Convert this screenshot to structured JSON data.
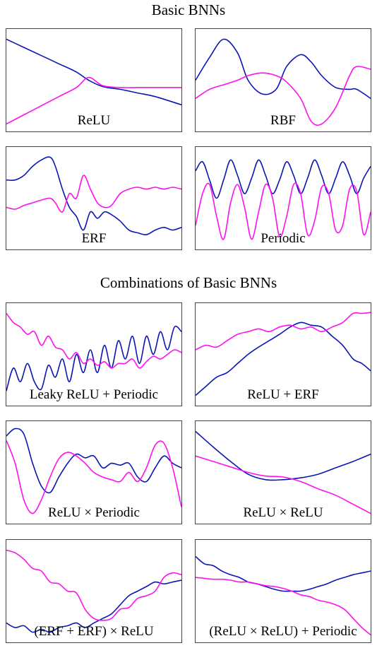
{
  "headings": {
    "basic": "Basic BNNs",
    "combos": "Combinations of Basic BNNs"
  },
  "colors": {
    "blue": "#0a16b4",
    "magenta": "#ff10ee"
  },
  "chart_data": [
    {
      "type": "line",
      "label": "ReLU",
      "grid": false,
      "ylim": [
        0,
        1
      ],
      "x": [
        0,
        0.1,
        0.2,
        0.3,
        0.4,
        0.47,
        0.55,
        0.65,
        0.75,
        0.85,
        1
      ],
      "series": [
        {
          "color": "blue",
          "values": [
            0.95,
            0.86,
            0.77,
            0.68,
            0.59,
            0.5,
            0.43,
            0.4,
            0.36,
            0.32,
            0.23
          ]
        },
        {
          "color": "magenta",
          "values": [
            0.02,
            0.12,
            0.22,
            0.32,
            0.42,
            0.53,
            0.44,
            0.42,
            0.42,
            0.42,
            0.42
          ]
        }
      ]
    },
    {
      "type": "line",
      "label": "RBF",
      "grid": false,
      "ylim": [
        0,
        1
      ],
      "x": [
        0,
        0.08,
        0.16,
        0.24,
        0.3,
        0.38,
        0.46,
        0.52,
        0.6,
        0.66,
        0.72,
        0.8,
        0.88,
        0.92,
        1
      ],
      "series": [
        {
          "color": "blue",
          "values": [
            0.5,
            0.75,
            0.95,
            0.8,
            0.5,
            0.35,
            0.4,
            0.65,
            0.78,
            0.7,
            0.55,
            0.42,
            0.4,
            0.4,
            0.3
          ]
        },
        {
          "color": "magenta",
          "values": [
            0.3,
            0.4,
            0.45,
            0.5,
            0.55,
            0.58,
            0.55,
            0.48,
            0.3,
            0.05,
            0.02,
            0.2,
            0.55,
            0.65,
            0.62
          ]
        }
      ]
    },
    {
      "type": "line",
      "label": "ERF",
      "grid": false,
      "ylim": [
        0,
        1
      ],
      "x": [
        0,
        0.05,
        0.1,
        0.15,
        0.2,
        0.25,
        0.28,
        0.32,
        0.36,
        0.4,
        0.44,
        0.48,
        0.52,
        0.56,
        0.6,
        0.65,
        0.7,
        0.75,
        0.8,
        0.85,
        0.9,
        0.95,
        1
      ],
      "series": [
        {
          "color": "blue",
          "values": [
            0.7,
            0.7,
            0.75,
            0.85,
            0.92,
            0.95,
            0.85,
            0.6,
            0.4,
            0.3,
            0.15,
            0.35,
            0.28,
            0.35,
            0.32,
            0.25,
            0.15,
            0.12,
            0.1,
            0.15,
            0.18,
            0.15,
            0.18
          ]
        },
        {
          "color": "magenta",
          "values": [
            0.4,
            0.38,
            0.42,
            0.45,
            0.48,
            0.5,
            0.45,
            0.35,
            0.55,
            0.5,
            0.75,
            0.6,
            0.45,
            0.4,
            0.42,
            0.55,
            0.6,
            0.62,
            0.6,
            0.62,
            0.6,
            0.62,
            0.6
          ]
        }
      ]
    },
    {
      "type": "line",
      "label": "Periodic",
      "grid": false,
      "ylim": [
        0,
        1
      ],
      "x": [
        0,
        0.04,
        0.08,
        0.12,
        0.16,
        0.2,
        0.24,
        0.28,
        0.32,
        0.36,
        0.4,
        0.44,
        0.48,
        0.52,
        0.56,
        0.6,
        0.64,
        0.68,
        0.72,
        0.76,
        0.8,
        0.84,
        0.88,
        0.92,
        0.96,
        1
      ],
      "series": [
        {
          "color": "blue",
          "values": [
            0.8,
            0.9,
            0.7,
            0.5,
            0.7,
            0.92,
            0.75,
            0.55,
            0.72,
            0.92,
            0.75,
            0.55,
            0.7,
            0.9,
            0.75,
            0.55,
            0.72,
            0.92,
            0.75,
            0.55,
            0.72,
            0.9,
            0.75,
            0.55,
            0.72,
            0.85
          ]
        },
        {
          "color": "magenta",
          "values": [
            0.2,
            0.55,
            0.65,
            0.3,
            0.05,
            0.45,
            0.65,
            0.4,
            0.05,
            0.35,
            0.65,
            0.5,
            0.08,
            0.3,
            0.65,
            0.55,
            0.1,
            0.25,
            0.62,
            0.55,
            0.15,
            0.2,
            0.6,
            0.58,
            0.1,
            0.35
          ]
        }
      ]
    },
    {
      "type": "line",
      "label": "Leaky ReLU + Periodic",
      "grid": false,
      "ylim": [
        0,
        1
      ],
      "x": [
        0,
        0.04,
        0.08,
        0.12,
        0.16,
        0.2,
        0.24,
        0.28,
        0.32,
        0.36,
        0.4,
        0.44,
        0.48,
        0.52,
        0.56,
        0.6,
        0.64,
        0.68,
        0.72,
        0.76,
        0.8,
        0.84,
        0.88,
        0.92,
        0.96,
        1
      ],
      "series": [
        {
          "color": "blue",
          "values": [
            0.1,
            0.35,
            0.2,
            0.4,
            0.2,
            0.12,
            0.38,
            0.25,
            0.45,
            0.2,
            0.5,
            0.3,
            0.55,
            0.3,
            0.6,
            0.35,
            0.65,
            0.45,
            0.7,
            0.4,
            0.7,
            0.5,
            0.75,
            0.55,
            0.8,
            0.75
          ]
        },
        {
          "color": "magenta",
          "values": [
            0.95,
            0.85,
            0.8,
            0.72,
            0.75,
            0.6,
            0.7,
            0.58,
            0.55,
            0.45,
            0.52,
            0.4,
            0.45,
            0.38,
            0.42,
            0.35,
            0.4,
            0.4,
            0.45,
            0.35,
            0.42,
            0.48,
            0.45,
            0.5,
            0.55,
            0.52
          ]
        }
      ]
    },
    {
      "type": "line",
      "label": "ReLU + ERF",
      "grid": false,
      "ylim": [
        0,
        1
      ],
      "x": [
        0,
        0.06,
        0.12,
        0.18,
        0.24,
        0.3,
        0.36,
        0.42,
        0.48,
        0.54,
        0.6,
        0.66,
        0.72,
        0.78,
        0.84,
        0.9,
        0.95,
        1
      ],
      "series": [
        {
          "color": "blue",
          "values": [
            0.05,
            0.15,
            0.25,
            0.3,
            0.4,
            0.5,
            0.58,
            0.65,
            0.72,
            0.8,
            0.85,
            0.82,
            0.8,
            0.7,
            0.6,
            0.45,
            0.4,
            0.32
          ]
        },
        {
          "color": "magenta",
          "values": [
            0.55,
            0.6,
            0.58,
            0.65,
            0.72,
            0.75,
            0.78,
            0.75,
            0.8,
            0.82,
            0.78,
            0.8,
            0.75,
            0.8,
            0.85,
            0.95,
            0.95,
            0.96
          ]
        }
      ]
    },
    {
      "type": "line",
      "label": "ReLU × Periodic",
      "grid": false,
      "ylim": [
        0,
        1
      ],
      "x": [
        0,
        0.05,
        0.1,
        0.15,
        0.2,
        0.25,
        0.3,
        0.35,
        0.4,
        0.45,
        0.5,
        0.55,
        0.6,
        0.65,
        0.7,
        0.75,
        0.8,
        0.85,
        0.9,
        0.95,
        1
      ],
      "series": [
        {
          "color": "blue",
          "values": [
            0.9,
            0.98,
            0.92,
            0.6,
            0.35,
            0.28,
            0.45,
            0.6,
            0.7,
            0.66,
            0.68,
            0.55,
            0.6,
            0.58,
            0.6,
            0.45,
            0.4,
            0.55,
            0.68,
            0.6,
            0.55
          ]
        },
        {
          "color": "magenta",
          "values": [
            0.85,
            0.6,
            0.2,
            0.05,
            0.2,
            0.45,
            0.65,
            0.72,
            0.68,
            0.6,
            0.5,
            0.45,
            0.42,
            0.4,
            0.5,
            0.4,
            0.55,
            0.8,
            0.82,
            0.55,
            0.12
          ]
        }
      ]
    },
    {
      "type": "line",
      "label": "ReLU × ReLU",
      "grid": false,
      "ylim": [
        0,
        1
      ],
      "x": [
        0,
        0.1,
        0.2,
        0.3,
        0.4,
        0.5,
        0.6,
        0.7,
        0.8,
        0.9,
        1
      ],
      "series": [
        {
          "color": "blue",
          "values": [
            0.95,
            0.78,
            0.62,
            0.48,
            0.42,
            0.42,
            0.44,
            0.48,
            0.55,
            0.62,
            0.7
          ]
        },
        {
          "color": "magenta",
          "values": [
            0.68,
            0.62,
            0.56,
            0.5,
            0.46,
            0.45,
            0.4,
            0.32,
            0.25,
            0.15,
            0.05
          ]
        }
      ]
    },
    {
      "type": "line",
      "label": "(ERF + ERF) × ReLU",
      "grid": false,
      "ylim": [
        0,
        1
      ],
      "x": [
        0,
        0.05,
        0.1,
        0.15,
        0.2,
        0.25,
        0.3,
        0.35,
        0.4,
        0.45,
        0.5,
        0.55,
        0.6,
        0.65,
        0.7,
        0.75,
        0.8,
        0.85,
        0.9,
        0.95,
        1
      ],
      "series": [
        {
          "color": "blue",
          "values": [
            0.15,
            0.1,
            0.12,
            0.05,
            0.08,
            0.05,
            0.1,
            0.12,
            0.15,
            0.1,
            0.15,
            0.2,
            0.25,
            0.35,
            0.45,
            0.5,
            0.55,
            0.6,
            0.58,
            0.6,
            0.62
          ]
        },
        {
          "color": "magenta",
          "values": [
            0.95,
            0.92,
            0.85,
            0.75,
            0.72,
            0.6,
            0.58,
            0.5,
            0.48,
            0.3,
            0.2,
            0.18,
            0.2,
            0.3,
            0.32,
            0.42,
            0.45,
            0.5,
            0.65,
            0.7,
            0.68
          ]
        }
      ]
    },
    {
      "type": "line",
      "label": "(ReLU × ReLU) + Periodic",
      "grid": false,
      "ylim": [
        0,
        1
      ],
      "x": [
        0,
        0.05,
        0.1,
        0.15,
        0.2,
        0.25,
        0.3,
        0.35,
        0.4,
        0.45,
        0.5,
        0.55,
        0.6,
        0.65,
        0.7,
        0.75,
        0.8,
        0.85,
        0.9,
        0.95,
        1
      ],
      "series": [
        {
          "color": "blue",
          "values": [
            0.88,
            0.8,
            0.78,
            0.72,
            0.68,
            0.65,
            0.6,
            0.58,
            0.55,
            0.52,
            0.5,
            0.5,
            0.5,
            0.52,
            0.55,
            0.58,
            0.62,
            0.65,
            0.68,
            0.7,
            0.72
          ]
        },
        {
          "color": "magenta",
          "values": [
            0.65,
            0.64,
            0.63,
            0.63,
            0.62,
            0.6,
            0.6,
            0.58,
            0.56,
            0.55,
            0.53,
            0.5,
            0.46,
            0.44,
            0.4,
            0.38,
            0.35,
            0.3,
            0.2,
            0.1,
            0.02
          ]
        }
      ]
    }
  ]
}
